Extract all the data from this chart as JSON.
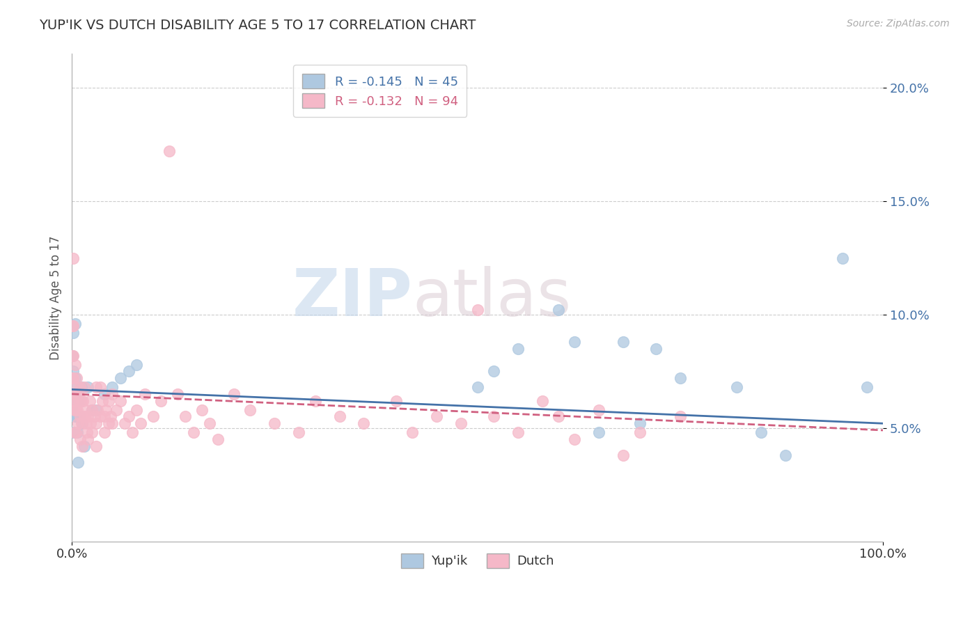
{
  "title": "YUP'IK VS DUTCH DISABILITY AGE 5 TO 17 CORRELATION CHART",
  "source_text": "Source: ZipAtlas.com",
  "ylabel": "Disability Age 5 to 17",
  "xmin": 0.0,
  "xmax": 1.0,
  "ymin": 0.0,
  "ymax": 0.215,
  "yticks": [
    0.05,
    0.1,
    0.15,
    0.2
  ],
  "ytick_labels": [
    "5.0%",
    "10.0%",
    "15.0%",
    "20.0%"
  ],
  "xtick_labels": [
    "0.0%",
    "100.0%"
  ],
  "legend_blue_text": "R = -0.145   N = 45",
  "legend_pink_text": "R = -0.132   N = 94",
  "legend_label_blue": "Yup'ik",
  "legend_label_pink": "Dutch",
  "blue_color": "#aec8e0",
  "pink_color": "#f5b8c8",
  "blue_line_color": "#4472a8",
  "pink_line_color": "#d06080",
  "background_color": "#ffffff",
  "grid_color": "#cccccc",
  "blue_points": [
    [
      0.001,
      0.082
    ],
    [
      0.001,
      0.072
    ],
    [
      0.001,
      0.065
    ],
    [
      0.001,
      0.058
    ],
    [
      0.002,
      0.092
    ],
    [
      0.002,
      0.075
    ],
    [
      0.002,
      0.065
    ],
    [
      0.002,
      0.056
    ],
    [
      0.002,
      0.048
    ],
    [
      0.003,
      0.068
    ],
    [
      0.003,
      0.055
    ],
    [
      0.004,
      0.096
    ],
    [
      0.004,
      0.072
    ],
    [
      0.005,
      0.062
    ],
    [
      0.006,
      0.055
    ],
    [
      0.007,
      0.048
    ],
    [
      0.008,
      0.035
    ],
    [
      0.009,
      0.062
    ],
    [
      0.01,
      0.055
    ],
    [
      0.012,
      0.068
    ],
    [
      0.013,
      0.052
    ],
    [
      0.015,
      0.042
    ],
    [
      0.02,
      0.068
    ],
    [
      0.025,
      0.058
    ],
    [
      0.03,
      0.058
    ],
    [
      0.04,
      0.065
    ],
    [
      0.05,
      0.068
    ],
    [
      0.06,
      0.072
    ],
    [
      0.07,
      0.075
    ],
    [
      0.08,
      0.078
    ],
    [
      0.5,
      0.068
    ],
    [
      0.52,
      0.075
    ],
    [
      0.55,
      0.085
    ],
    [
      0.6,
      0.102
    ],
    [
      0.62,
      0.088
    ],
    [
      0.65,
      0.048
    ],
    [
      0.68,
      0.088
    ],
    [
      0.7,
      0.052
    ],
    [
      0.72,
      0.085
    ],
    [
      0.75,
      0.072
    ],
    [
      0.82,
      0.068
    ],
    [
      0.85,
      0.048
    ],
    [
      0.88,
      0.038
    ],
    [
      0.95,
      0.125
    ],
    [
      0.98,
      0.068
    ]
  ],
  "pink_points": [
    [
      0.001,
      0.095
    ],
    [
      0.001,
      0.082
    ],
    [
      0.001,
      0.072
    ],
    [
      0.001,
      0.062
    ],
    [
      0.002,
      0.125
    ],
    [
      0.002,
      0.095
    ],
    [
      0.002,
      0.082
    ],
    [
      0.002,
      0.072
    ],
    [
      0.002,
      0.062
    ],
    [
      0.003,
      0.068
    ],
    [
      0.003,
      0.058
    ],
    [
      0.003,
      0.048
    ],
    [
      0.004,
      0.078
    ],
    [
      0.004,
      0.065
    ],
    [
      0.005,
      0.058
    ],
    [
      0.005,
      0.048
    ],
    [
      0.006,
      0.072
    ],
    [
      0.007,
      0.058
    ],
    [
      0.008,
      0.065
    ],
    [
      0.008,
      0.052
    ],
    [
      0.009,
      0.062
    ],
    [
      0.01,
      0.068
    ],
    [
      0.01,
      0.055
    ],
    [
      0.01,
      0.045
    ],
    [
      0.012,
      0.062
    ],
    [
      0.012,
      0.052
    ],
    [
      0.013,
      0.042
    ],
    [
      0.014,
      0.062
    ],
    [
      0.015,
      0.068
    ],
    [
      0.015,
      0.055
    ],
    [
      0.016,
      0.055
    ],
    [
      0.017,
      0.058
    ],
    [
      0.018,
      0.052
    ],
    [
      0.019,
      0.048
    ],
    [
      0.02,
      0.055
    ],
    [
      0.02,
      0.045
    ],
    [
      0.022,
      0.062
    ],
    [
      0.023,
      0.052
    ],
    [
      0.025,
      0.058
    ],
    [
      0.025,
      0.048
    ],
    [
      0.028,
      0.055
    ],
    [
      0.03,
      0.068
    ],
    [
      0.03,
      0.052
    ],
    [
      0.03,
      0.042
    ],
    [
      0.032,
      0.058
    ],
    [
      0.035,
      0.068
    ],
    [
      0.035,
      0.055
    ],
    [
      0.038,
      0.062
    ],
    [
      0.04,
      0.055
    ],
    [
      0.04,
      0.048
    ],
    [
      0.042,
      0.058
    ],
    [
      0.045,
      0.062
    ],
    [
      0.045,
      0.052
    ],
    [
      0.048,
      0.055
    ],
    [
      0.05,
      0.065
    ],
    [
      0.05,
      0.052
    ],
    [
      0.055,
      0.058
    ],
    [
      0.06,
      0.062
    ],
    [
      0.065,
      0.052
    ],
    [
      0.07,
      0.055
    ],
    [
      0.075,
      0.048
    ],
    [
      0.08,
      0.058
    ],
    [
      0.085,
      0.052
    ],
    [
      0.09,
      0.065
    ],
    [
      0.1,
      0.055
    ],
    [
      0.11,
      0.062
    ],
    [
      0.12,
      0.172
    ],
    [
      0.13,
      0.065
    ],
    [
      0.14,
      0.055
    ],
    [
      0.15,
      0.048
    ],
    [
      0.16,
      0.058
    ],
    [
      0.17,
      0.052
    ],
    [
      0.18,
      0.045
    ],
    [
      0.2,
      0.065
    ],
    [
      0.22,
      0.058
    ],
    [
      0.25,
      0.052
    ],
    [
      0.28,
      0.048
    ],
    [
      0.3,
      0.062
    ],
    [
      0.33,
      0.055
    ],
    [
      0.36,
      0.052
    ],
    [
      0.4,
      0.062
    ],
    [
      0.42,
      0.048
    ],
    [
      0.45,
      0.055
    ],
    [
      0.48,
      0.052
    ],
    [
      0.5,
      0.102
    ],
    [
      0.52,
      0.055
    ],
    [
      0.55,
      0.048
    ],
    [
      0.58,
      0.062
    ],
    [
      0.6,
      0.055
    ],
    [
      0.62,
      0.045
    ],
    [
      0.65,
      0.058
    ],
    [
      0.68,
      0.038
    ],
    [
      0.7,
      0.048
    ],
    [
      0.75,
      0.055
    ]
  ],
  "blue_line": {
    "x0": 0.0,
    "y0": 0.067,
    "x1": 1.0,
    "y1": 0.052
  },
  "pink_line": {
    "x0": 0.0,
    "y0": 0.065,
    "x1": 1.0,
    "y1": 0.049
  }
}
